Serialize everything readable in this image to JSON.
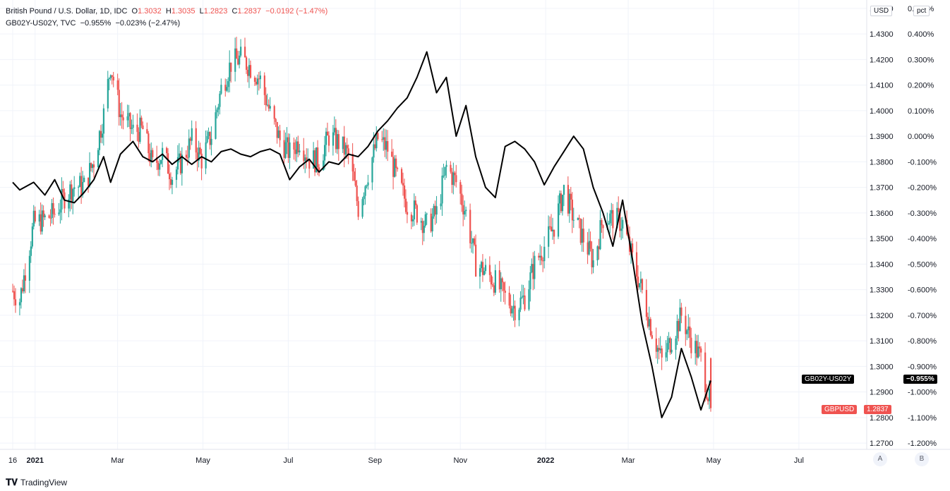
{
  "legend": {
    "pair_title": "British Pound / U.S. Dollar, 1D, IDC",
    "o_label": "O",
    "o_val": "1.3032",
    "h_label": "H",
    "h_val": "1.3035",
    "l_label": "L",
    "l_val": "1.2823",
    "c_label": "C",
    "c_val": "1.2837",
    "change": "−0.0192 (−1.47%)",
    "spread_title": "GB02Y-US02Y, TVC",
    "spread_val": "−0.955%",
    "spread_change": "−0.023% (−2.47%)"
  },
  "badges": {
    "spread_name": "GB02Y-US02Y",
    "spread_value": "−0.955%",
    "pair_name": "GBPUSD",
    "pair_value": "1.2837"
  },
  "axis_buttons": {
    "currency": "USD",
    "scale": "pct",
    "auto": "A",
    "log": "B"
  },
  "brand": "TradingView",
  "colors": {
    "up": "#26a69a",
    "down": "#ef5350",
    "line": "#000000",
    "grid": "#f0f3fa"
  },
  "chart_data": {
    "type": "candlestick+line",
    "left_axis_unit": "USD",
    "right_axis_unit": "pct",
    "x_tick_labels": [
      "16",
      "2021",
      "Mar",
      "May",
      "Jul",
      "Sep",
      "Nov",
      "2022",
      "Mar",
      "May",
      "Jul"
    ],
    "usd_ticks": [
      "1.2700",
      "1.2800",
      "1.2900",
      "1.3000",
      "1.3100",
      "1.3200",
      "1.3300",
      "1.3400",
      "1.3500",
      "1.3600",
      "1.3700",
      "1.3800",
      "1.3900",
      "1.4000",
      "1.4100",
      "1.4200",
      "1.4300",
      "1.4400"
    ],
    "pct_ticks": [
      "-1.200%",
      "-1.100%",
      "-1.000%",
      "-0.900%",
      "-0.800%",
      "-0.700%",
      "-0.600%",
      "-0.500%",
      "-0.400%",
      "-0.300%",
      "-0.200%",
      "-0.100%",
      "0.000%",
      "0.100%",
      "0.200%",
      "0.300%",
      "0.400%",
      "0.500%"
    ],
    "usd_range": [
      1.2695,
      1.4405
    ],
    "pct_range": [
      -1.205,
      0.505
    ],
    "series": [
      {
        "name": "GBPUSD",
        "kind": "candlestick",
        "close_path": [
          [
            "2020-12-16",
            1.3295
          ],
          [
            "2020-12-21",
            1.326
          ],
          [
            "2020-12-31",
            1.356
          ],
          [
            "2021-01-08",
            1.3575
          ],
          [
            "2021-01-15",
            1.36
          ],
          [
            "2021-01-22",
            1.3665
          ],
          [
            "2021-01-29",
            1.3705
          ],
          [
            "2021-02-05",
            1.3705
          ],
          [
            "2021-02-12",
            1.3805
          ],
          [
            "2021-02-19",
            1.3985
          ],
          [
            "2021-02-24",
            1.418
          ],
          [
            "2021-03-03",
            1.3985
          ],
          [
            "2021-03-12",
            1.392
          ],
          [
            "2021-03-19",
            1.3925
          ],
          [
            "2021-03-26",
            1.3785
          ],
          [
            "2021-04-02",
            1.383
          ],
          [
            "2021-04-09",
            1.3745
          ],
          [
            "2021-04-16",
            1.3805
          ],
          [
            "2021-04-23",
            1.3885
          ],
          [
            "2021-04-30",
            1.381
          ],
          [
            "2021-05-07",
            1.3905
          ],
          [
            "2021-05-14",
            1.4085
          ],
          [
            "2021-05-21",
            1.4185
          ],
          [
            "2021-05-28",
            1.4205
          ],
          [
            "2021-06-04",
            1.417
          ],
          [
            "2021-06-11",
            1.412
          ],
          [
            "2021-06-18",
            1.399
          ],
          [
            "2021-06-25",
            1.3885
          ],
          [
            "2021-07-02",
            1.3835
          ],
          [
            "2021-07-09",
            1.3885
          ],
          [
            "2021-07-16",
            1.381
          ],
          [
            "2021-07-23",
            1.3805
          ],
          [
            "2021-07-30",
            1.39
          ],
          [
            "2021-08-06",
            1.3875
          ],
          [
            "2021-08-13",
            1.3825
          ],
          [
            "2021-08-20",
            1.362
          ],
          [
            "2021-08-27",
            1.376
          ],
          [
            "2021-09-03",
            1.389
          ],
          [
            "2021-09-10",
            1.385
          ],
          [
            "2021-09-17",
            1.373
          ],
          [
            "2021-09-24",
            1.363
          ],
          [
            "2021-10-01",
            1.36
          ],
          [
            "2021-10-08",
            1.355
          ],
          [
            "2021-10-15",
            1.36
          ],
          [
            "2021-10-22",
            1.378
          ],
          [
            "2021-10-29",
            1.372
          ],
          [
            "2021-11-05",
            1.36
          ],
          [
            "2021-11-12",
            1.34
          ],
          [
            "2021-11-19",
            1.337
          ],
          [
            "2021-11-26",
            1.333
          ],
          [
            "2021-12-03",
            1.327
          ],
          [
            "2021-12-10",
            1.323
          ],
          [
            "2021-12-17",
            1.327
          ],
          [
            "2021-12-24",
            1.34
          ],
          [
            "2021-12-31",
            1.347
          ],
          [
            "2022-01-07",
            1.355
          ],
          [
            "2022-01-14",
            1.369
          ],
          [
            "2022-01-21",
            1.358
          ],
          [
            "2022-01-28",
            1.35
          ],
          [
            "2022-02-04",
            1.341
          ],
          [
            "2022-02-11",
            1.358
          ],
          [
            "2022-02-18",
            1.358
          ],
          [
            "2022-02-25",
            1.356
          ],
          [
            "2022-03-04",
            1.342
          ],
          [
            "2022-03-11",
            1.329
          ],
          [
            "2022-03-18",
            1.314
          ],
          [
            "2022-03-25",
            1.302
          ],
          [
            "2022-04-01",
            1.311
          ],
          [
            "2022-04-08",
            1.32
          ],
          [
            "2022-04-15",
            1.31
          ],
          [
            "2022-04-22",
            1.303
          ],
          [
            "2022-04-29",
            1.2837
          ]
        ]
      },
      {
        "name": "GB02Y-US02Y",
        "kind": "line",
        "points": [
          [
            "2020-12-16",
            -0.18
          ],
          [
            "2020-12-21",
            -0.21
          ],
          [
            "2020-12-31",
            -0.18
          ],
          [
            "2021-01-08",
            -0.23
          ],
          [
            "2021-01-15",
            -0.17
          ],
          [
            "2021-01-22",
            -0.25
          ],
          [
            "2021-01-29",
            -0.26
          ],
          [
            "2021-02-05",
            -0.22
          ],
          [
            "2021-02-12",
            -0.17
          ],
          [
            "2021-02-19",
            -0.08
          ],
          [
            "2021-02-24",
            -0.18
          ],
          [
            "2021-03-03",
            -0.07
          ],
          [
            "2021-03-12",
            -0.02
          ],
          [
            "2021-03-19",
            -0.08
          ],
          [
            "2021-03-26",
            -0.1
          ],
          [
            "2021-04-02",
            -0.07
          ],
          [
            "2021-04-09",
            -0.11
          ],
          [
            "2021-04-16",
            -0.08
          ],
          [
            "2021-04-23",
            -0.11
          ],
          [
            "2021-04-30",
            -0.08
          ],
          [
            "2021-05-07",
            -0.1
          ],
          [
            "2021-05-14",
            -0.06
          ],
          [
            "2021-05-21",
            -0.05
          ],
          [
            "2021-05-28",
            -0.07
          ],
          [
            "2021-06-04",
            -0.08
          ],
          [
            "2021-06-11",
            -0.06
          ],
          [
            "2021-06-18",
            -0.05
          ],
          [
            "2021-06-25",
            -0.07
          ],
          [
            "2021-07-02",
            -0.17
          ],
          [
            "2021-07-09",
            -0.12
          ],
          [
            "2021-07-16",
            -0.09
          ],
          [
            "2021-07-23",
            -0.14
          ],
          [
            "2021-07-30",
            -0.1
          ],
          [
            "2021-08-06",
            -0.11
          ],
          [
            "2021-08-13",
            -0.07
          ],
          [
            "2021-08-20",
            -0.08
          ],
          [
            "2021-08-27",
            -0.04
          ],
          [
            "2021-09-03",
            0.02
          ],
          [
            "2021-09-10",
            0.06
          ],
          [
            "2021-09-17",
            0.11
          ],
          [
            "2021-09-24",
            0.15
          ],
          [
            "2021-10-01",
            0.23
          ],
          [
            "2021-10-08",
            0.33
          ],
          [
            "2021-10-15",
            0.17
          ],
          [
            "2021-10-22",
            0.23
          ],
          [
            "2021-10-29",
            0.0
          ],
          [
            "2021-11-05",
            0.12
          ],
          [
            "2021-11-12",
            -0.08
          ],
          [
            "2021-11-19",
            -0.2
          ],
          [
            "2021-11-26",
            -0.24
          ],
          [
            "2021-12-03",
            -0.04
          ],
          [
            "2021-12-10",
            -0.02
          ],
          [
            "2021-12-17",
            -0.05
          ],
          [
            "2021-12-24",
            -0.1
          ],
          [
            "2021-12-31",
            -0.19
          ],
          [
            "2022-01-07",
            -0.12
          ],
          [
            "2022-01-14",
            -0.06
          ],
          [
            "2022-01-21",
            0.0
          ],
          [
            "2022-01-28",
            -0.05
          ],
          [
            "2022-02-04",
            -0.2
          ],
          [
            "2022-02-11",
            -0.3
          ],
          [
            "2022-02-18",
            -0.43
          ],
          [
            "2022-02-25",
            -0.25
          ],
          [
            "2022-03-04",
            -0.48
          ],
          [
            "2022-03-11",
            -0.73
          ],
          [
            "2022-03-18",
            -0.9
          ],
          [
            "2022-03-25",
            -1.1
          ],
          [
            "2022-04-01",
            -1.02
          ],
          [
            "2022-04-08",
            -0.83
          ],
          [
            "2022-04-15",
            -0.94
          ],
          [
            "2022-04-22",
            -1.07
          ],
          [
            "2022-04-29",
            -0.955
          ]
        ]
      }
    ]
  }
}
